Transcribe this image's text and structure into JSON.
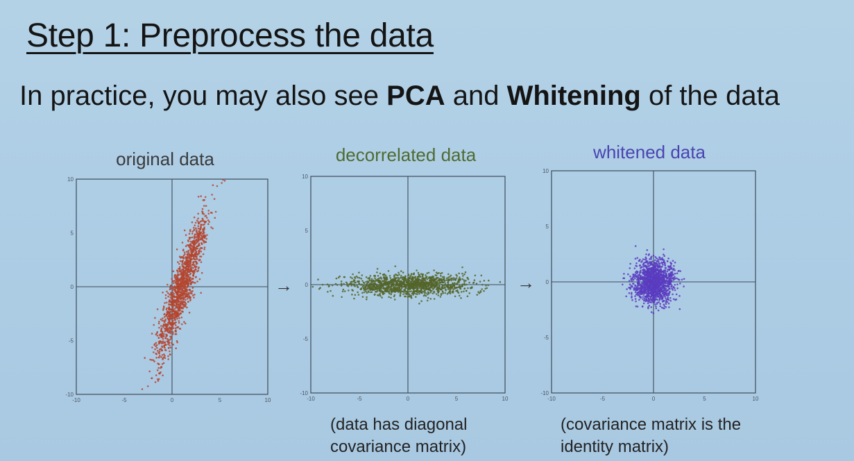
{
  "slide": {
    "title": "Step 1: Preprocess the data",
    "subtitle": {
      "pre": "In practice, you may also see ",
      "bold1": "PCA",
      "mid": " and ",
      "bold2": "Whitening",
      "post": " of the data"
    },
    "arrow_glyph": "→"
  },
  "panels": [
    {
      "title": "original data",
      "title_color": "#3a3a3a",
      "point_color": "#b5452f",
      "caption": []
    },
    {
      "title": "decorrelated data",
      "title_color": "#4e6b31",
      "point_color": "#55652a",
      "caption": [
        "(data has diagonal",
        "covariance matrix)"
      ]
    },
    {
      "title": "whitened data",
      "title_color": "#4a44b0",
      "point_color": "#5a3cc0",
      "caption": [
        "(covariance matrix is the",
        "identity matrix)"
      ]
    }
  ],
  "chart_data": [
    {
      "type": "scatter",
      "title": "original data",
      "xlim": [
        -10,
        10
      ],
      "ylim": [
        -10,
        10
      ],
      "xticks": [
        "-10",
        "-5",
        "0",
        "5",
        "10"
      ],
      "yticks": [
        "10",
        "5",
        "0",
        "-5",
        "-10"
      ],
      "distribution": {
        "mean": [
          1,
          0
        ],
        "std_major": 3.6,
        "std_minor": 0.55,
        "angle_deg": 70,
        "n": 1400
      }
    },
    {
      "type": "scatter",
      "title": "decorrelated data",
      "xlim": [
        -10,
        10
      ],
      "ylim": [
        -10,
        10
      ],
      "xticks": [
        "-10",
        "-5",
        "0",
        "5",
        "10"
      ],
      "yticks": [
        "10",
        "5",
        "0",
        "-5",
        "-10"
      ],
      "distribution": {
        "mean": [
          0,
          0
        ],
        "std_major": 3.3,
        "std_minor": 0.5,
        "angle_deg": 0,
        "n": 1400
      }
    },
    {
      "type": "scatter",
      "title": "whitened data",
      "xlim": [
        -10,
        10
      ],
      "ylim": [
        -10,
        10
      ],
      "xticks": [
        "-10",
        "-5",
        "0",
        "5",
        "10"
      ],
      "yticks": [
        "10",
        "5",
        "0",
        "-5",
        "-10"
      ],
      "distribution": {
        "mean": [
          0,
          0
        ],
        "std_major": 1.0,
        "std_minor": 1.0,
        "angle_deg": 0,
        "n": 1400
      }
    }
  ]
}
